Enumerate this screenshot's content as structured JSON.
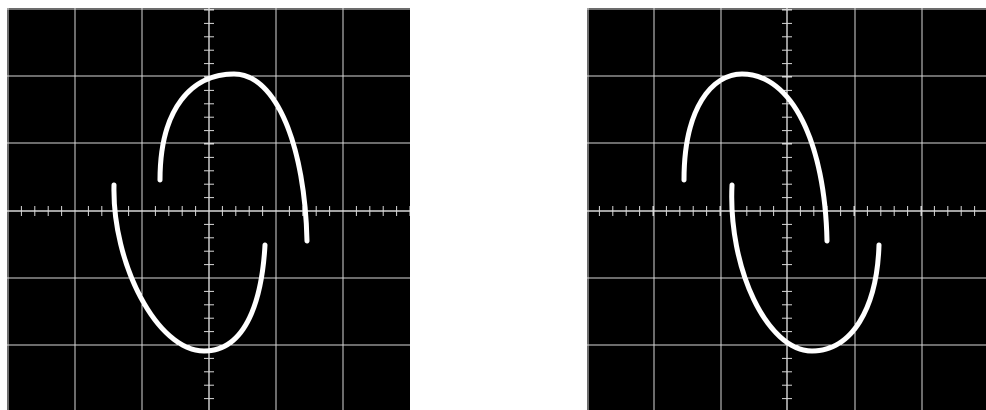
{
  "figure": {
    "panels": [
      {
        "id": "left",
        "description_free": true
      },
      {
        "id": "right",
        "description_free": true
      }
    ]
  },
  "colors": {
    "screen": "#000000",
    "graticule": "#d8d8d8",
    "trace": "#ffffff",
    "paper": "#ffffff"
  }
}
